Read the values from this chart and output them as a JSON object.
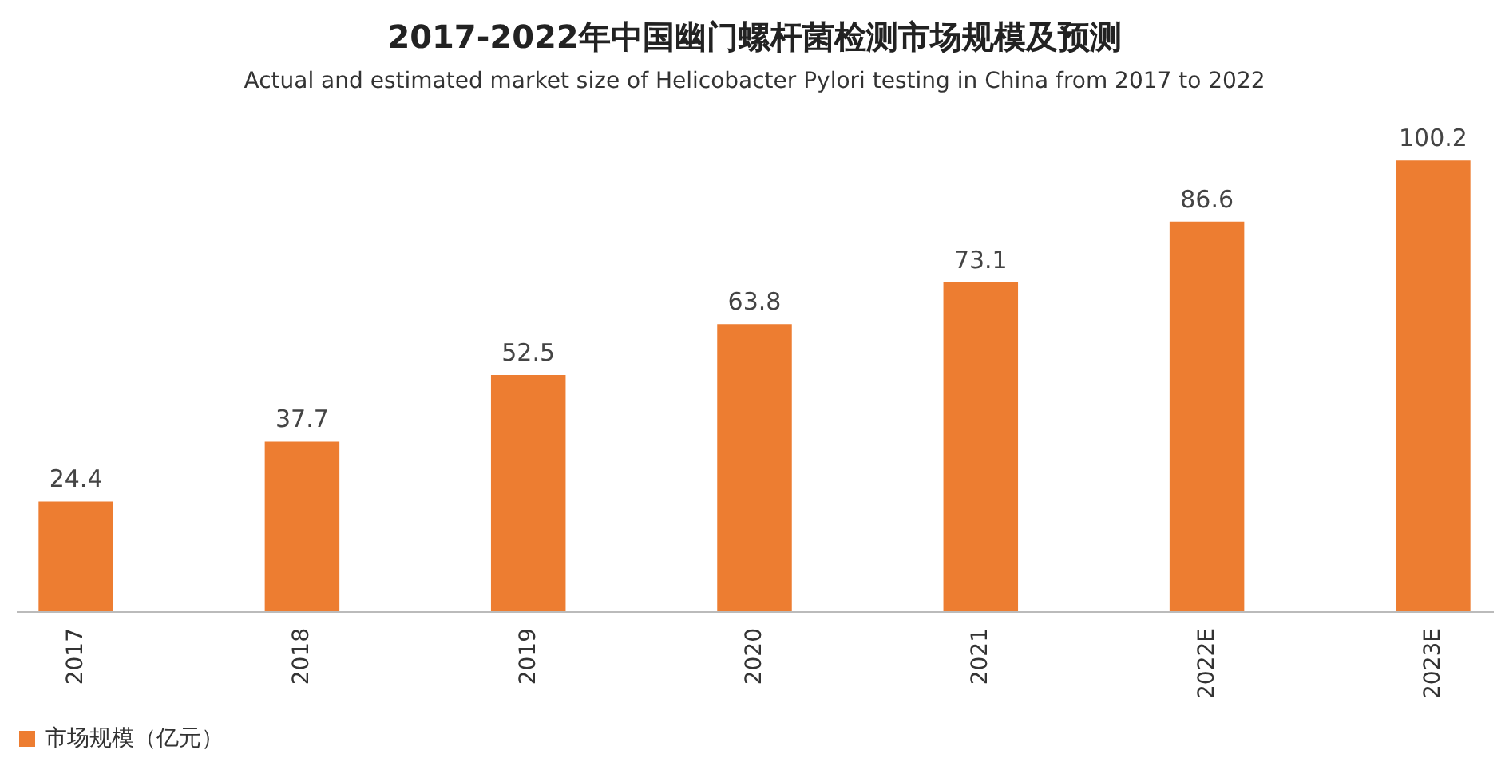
{
  "chart_data": {
    "type": "bar",
    "title": "2017-2022年中国幽门螺杆菌检测市场规模及预测",
    "subtitle": "Actual and estimated market size of Helicobacter Pylori testing in China from 2017 to 2022",
    "categories": [
      "2017",
      "2018",
      "2019",
      "2020",
      "2021",
      "2022E",
      "2023E"
    ],
    "series": [
      {
        "name": "市场规模（亿元）",
        "color": "#ed7d31",
        "values": [
          24.4,
          37.7,
          52.5,
          63.8,
          73.1,
          86.6,
          100.2
        ]
      }
    ],
    "data_labels": true,
    "grid": false,
    "legend": "bottom"
  }
}
